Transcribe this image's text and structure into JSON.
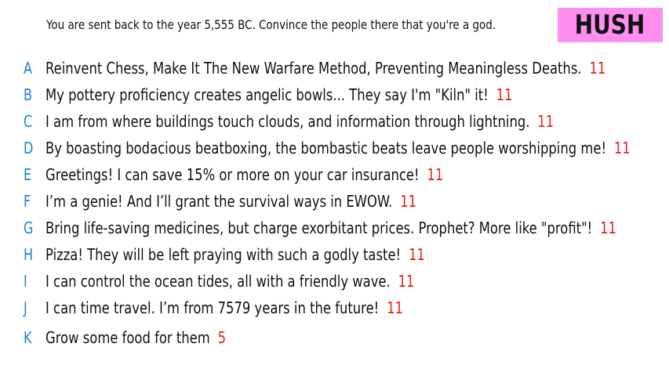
{
  "prompt": "You are sent back to the year 5,555 BC. Convince the people there that you're a god.",
  "badge": "HUSH",
  "colors": {
    "letter": "#1a7fe6",
    "score": "#e3221b",
    "badge_bg": "#ff8ef1",
    "text": "#111111"
  },
  "answers": [
    {
      "letter": "A",
      "text": "Reinvent Chess, Make It The New Warfare Method, Preventing Meaningless Deaths.",
      "score": "11"
    },
    {
      "letter": "B",
      "text": "My pottery proficiency creates angelic bowls... They say I'm \"Kiln\" it!",
      "score": "11"
    },
    {
      "letter": "C",
      "text": "I am from where buildings touch clouds, and information through lightning.",
      "score": "11"
    },
    {
      "letter": "D",
      "text": "By boasting bodacious beatboxing, the bombastic beats leave people worshipping me!",
      "score": "11"
    },
    {
      "letter": "E",
      "text": "Greetings! I can save 15% or more on your car insurance!",
      "score": "11"
    },
    {
      "letter": "F",
      "text": "I’m a genie! And I’ll grant the survival ways in EWOW.",
      "score": "11"
    },
    {
      "letter": "G",
      "text": "Bring life-saving medicines, but charge exorbitant prices. Prophet? More like \"profit\"!",
      "score": "11"
    },
    {
      "letter": "H",
      "text": "Pizza! They will be left praying with such a godly taste!",
      "score": "11"
    },
    {
      "letter": "I",
      "text": "I can control the ocean tides, all with a friendly wave.",
      "score": "11"
    },
    {
      "letter": "J",
      "text": "I can time travel. I’m from 7579 years in the future!",
      "score": "11"
    },
    {
      "letter": "K",
      "text": "Grow some food for them",
      "score": "5"
    }
  ]
}
